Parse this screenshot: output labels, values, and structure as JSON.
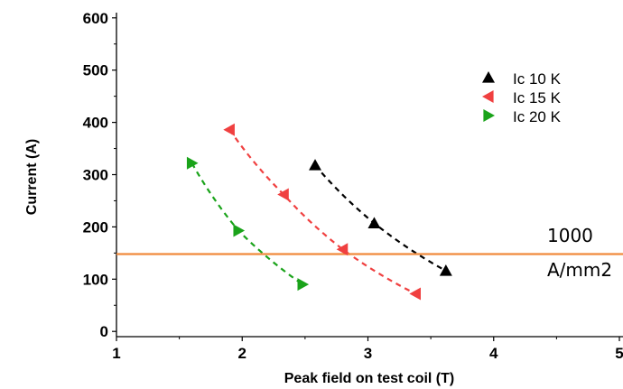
{
  "chart_data": {
    "type": "scatter",
    "xlabel": "Peak field on test coil (T)",
    "ylabel": "Current (A)",
    "xlim": [
      1,
      5
    ],
    "ylim": [
      -10,
      610
    ],
    "x_ticks": [
      "1",
      "2",
      "3",
      "4",
      "5"
    ],
    "y_ticks": [
      "0",
      "100",
      "200",
      "300",
      "400",
      "500",
      "600"
    ],
    "x_tick_values": [
      1,
      2,
      3,
      4,
      5
    ],
    "y_tick_values": [
      0,
      100,
      200,
      300,
      400,
      500,
      600
    ],
    "legend_position": "top-right",
    "series": [
      {
        "name": "Ic 10 K",
        "marker": "triangle-up",
        "color": "#000000",
        "points": [
          [
            2.58,
            318
          ],
          [
            3.05,
            207
          ],
          [
            3.62,
            116
          ]
        ]
      },
      {
        "name": "Ic 15 K",
        "marker": "triangle-left",
        "color": "#f04040",
        "points": [
          [
            1.9,
            386
          ],
          [
            2.33,
            262
          ],
          [
            2.8,
            157
          ],
          [
            3.38,
            72
          ]
        ]
      },
      {
        "name": "Ic 20 K",
        "marker": "triangle-right",
        "color": "#1aa31a",
        "points": [
          [
            1.6,
            322
          ],
          [
            1.97,
            193
          ],
          [
            2.48,
            90
          ]
        ]
      }
    ],
    "reference_line": {
      "y": 148,
      "color": "#f08a3c",
      "label_line1": "1000",
      "label_line2": "A/mm2"
    }
  }
}
